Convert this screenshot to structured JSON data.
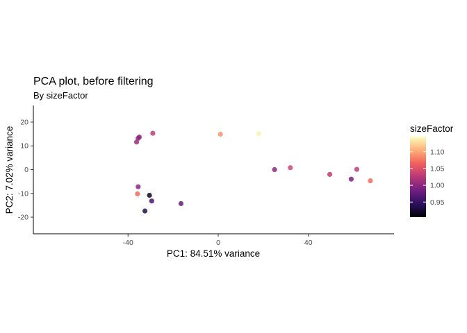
{
  "chart_data": {
    "type": "scatter",
    "title": "PCA plot, before filtering",
    "subtitle": "By sizeFactor",
    "xlabel": "PC1: 84.51% variance",
    "ylabel": "PC2: 7.02% variance",
    "xlim": [
      -82,
      78
    ],
    "ylim": [
      -27,
      27
    ],
    "xticks": [
      -40,
      0,
      40
    ],
    "xtick_labels": [
      "-40",
      "0",
      "40"
    ],
    "yticks": [
      -20,
      -10,
      0,
      10,
      20
    ],
    "ytick_labels": [
      "-20",
      "-10",
      "0",
      "10",
      "20"
    ],
    "grid": false,
    "legend": {
      "title": "sizeFactor",
      "position": "right",
      "range": [
        0.905,
        1.145
      ],
      "ticks": [
        0.95,
        1.0,
        1.05,
        1.1
      ],
      "tick_labels": [
        "0.95",
        "1.00",
        "1.05",
        "1.10"
      ],
      "palette": [
        "#000004",
        "#2c115f",
        "#721f81",
        "#b73779",
        "#f1605d",
        "#feb078",
        "#fcfdbf"
      ]
    },
    "points": [
      {
        "x": -35.0,
        "y": 13.7,
        "size_factor": 1.0
      },
      {
        "x": -35.5,
        "y": 13.2,
        "size_factor": 1.0
      },
      {
        "x": -36.2,
        "y": 11.6,
        "size_factor": 1.01
      },
      {
        "x": -29.0,
        "y": 15.3,
        "size_factor": 1.03
      },
      {
        "x": 1.0,
        "y": 14.9,
        "size_factor": 1.09
      },
      {
        "x": 18.0,
        "y": 15.1,
        "size_factor": 1.14
      },
      {
        "x": 25.0,
        "y": 0.0,
        "size_factor": 1.0
      },
      {
        "x": 32.0,
        "y": 0.8,
        "size_factor": 1.04
      },
      {
        "x": 49.5,
        "y": -2.0,
        "size_factor": 1.03
      },
      {
        "x": 59.0,
        "y": -4.0,
        "size_factor": 0.99
      },
      {
        "x": 61.5,
        "y": 0.1,
        "size_factor": 1.03
      },
      {
        "x": 67.5,
        "y": -4.7,
        "size_factor": 1.07
      },
      {
        "x": -35.5,
        "y": -7.2,
        "size_factor": 1.0
      },
      {
        "x": -35.8,
        "y": -10.2,
        "size_factor": 1.07
      },
      {
        "x": -30.5,
        "y": -10.8,
        "size_factor": 0.92
      },
      {
        "x": -29.5,
        "y": -13.2,
        "size_factor": 0.96
      },
      {
        "x": -32.5,
        "y": -17.4,
        "size_factor": 0.94
      },
      {
        "x": -16.5,
        "y": -14.3,
        "size_factor": 0.98
      }
    ]
  }
}
